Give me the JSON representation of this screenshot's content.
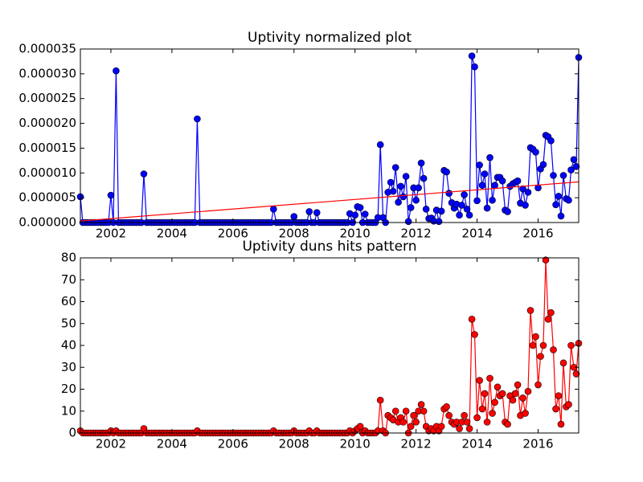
{
  "chart_data": [
    {
      "type": "line",
      "title": "Uptivity normalized plot",
      "xlim": [
        2001,
        2017.33
      ],
      "xticks": [
        2002,
        2004,
        2006,
        2008,
        2010,
        2012,
        2014,
        2016
      ],
      "ylim": [
        0,
        3.5e-05
      ],
      "yticks": [
        {
          "value": 0,
          "label": "0.000000"
        },
        5e-06,
        {
          "value": 1e-05,
          "label": "0.000010"
        },
        1.5e-05,
        {
          "value": 2e-05,
          "label": "0.000020"
        },
        2.5e-05,
        {
          "value": 3e-05,
          "label": "0.000030"
        },
        3.5e-05
      ],
      "series": [
        {
          "color": "#0000ff",
          "x": [
            2001,
            2001.08,
            2001.17,
            2001.25,
            2001.33,
            2001.42,
            2001.5,
            2001.58,
            2001.67,
            2001.75,
            2001.83,
            2001.92,
            2002,
            2002.08,
            2002.17,
            2002.25,
            2002.33,
            2002.42,
            2002.5,
            2002.58,
            2002.67,
            2002.75,
            2002.83,
            2002.92,
            2003,
            2003.08,
            2003.17,
            2003.25,
            2003.33,
            2003.42,
            2003.5,
            2003.58,
            2003.67,
            2003.75,
            2003.83,
            2003.92,
            2004,
            2004.08,
            2004.17,
            2004.25,
            2004.33,
            2004.42,
            2004.5,
            2004.58,
            2004.67,
            2004.75,
            2004.83,
            2004.92,
            2005,
            2005.08,
            2005.17,
            2005.25,
            2005.33,
            2005.42,
            2005.5,
            2005.58,
            2005.67,
            2005.75,
            2005.83,
            2005.92,
            2006,
            2006.08,
            2006.17,
            2006.25,
            2006.33,
            2006.42,
            2006.5,
            2006.58,
            2006.67,
            2006.75,
            2006.83,
            2006.92,
            2007,
            2007.08,
            2007.17,
            2007.25,
            2007.33,
            2007.42,
            2007.5,
            2007.58,
            2007.67,
            2007.75,
            2007.83,
            2007.92,
            2008,
            2008.08,
            2008.17,
            2008.25,
            2008.33,
            2008.42,
            2008.5,
            2008.58,
            2008.67,
            2008.75,
            2008.83,
            2008.92,
            2009,
            2009.08,
            2009.17,
            2009.25,
            2009.33,
            2009.42,
            2009.5,
            2009.58,
            2009.67,
            2009.75,
            2009.83,
            2009.92,
            2010,
            2010.08,
            2010.17,
            2010.25,
            2010.33,
            2010.42,
            2010.5,
            2010.58,
            2010.67,
            2010.75,
            2010.83,
            2010.92,
            2011,
            2011.08,
            2011.17,
            2011.25,
            2011.33,
            2011.42,
            2011.5,
            2011.58,
            2011.67,
            2011.75,
            2011.83,
            2011.92,
            2012,
            2012.08,
            2012.17,
            2012.25,
            2012.33,
            2012.42,
            2012.5,
            2012.58,
            2012.67,
            2012.75,
            2012.83,
            2012.92,
            2013,
            2013.08,
            2013.17,
            2013.25,
            2013.33,
            2013.42,
            2013.5,
            2013.58,
            2013.67,
            2013.75,
            2013.83,
            2013.92,
            2014,
            2014.08,
            2014.17,
            2014.25,
            2014.33,
            2014.42,
            2014.5,
            2014.58,
            2014.67,
            2014.75,
            2014.83,
            2014.92,
            2015,
            2015.08,
            2015.17,
            2015.25,
            2015.33,
            2015.42,
            2015.5,
            2015.58,
            2015.67,
            2015.75,
            2015.83,
            2015.92,
            2016,
            2016.08,
            2016.17,
            2016.25,
            2016.33,
            2016.42,
            2016.5,
            2016.58,
            2016.67,
            2016.75,
            2016.83,
            2016.92,
            2017,
            2017.08,
            2017.17,
            2017.25,
            2017.33
          ],
          "values": [
            5.2e-06,
            0,
            0,
            0,
            0,
            0,
            0,
            0,
            0,
            0,
            0,
            0,
            5.5e-06,
            0,
            3.06e-05,
            0,
            0,
            0,
            0,
            0,
            0,
            0,
            0,
            0,
            0,
            9.8e-06,
            0,
            0,
            0,
            0,
            0,
            0,
            0,
            0,
            0,
            0,
            0,
            0,
            0,
            0,
            0,
            0,
            0,
            0,
            0,
            0,
            2.09e-05,
            0,
            0,
            0,
            0,
            0,
            0,
            0,
            0,
            0,
            0,
            0,
            0,
            0,
            0,
            0,
            0,
            0,
            0,
            0,
            0,
            0,
            0,
            0,
            0,
            0,
            0,
            0,
            0,
            0,
            2.7e-06,
            0,
            0,
            0,
            0,
            0,
            0,
            0,
            1.2e-06,
            0,
            0,
            0,
            0,
            0,
            2.2e-06,
            0,
            0,
            2e-06,
            0,
            0,
            0,
            0,
            0,
            0,
            0,
            0,
            0,
            0,
            0,
            0,
            1.8e-06,
            0,
            1.5e-06,
            3.2e-06,
            3e-06,
            0,
            1.7e-06,
            0,
            0,
            0,
            0,
            1e-06,
            1.57e-05,
            1e-06,
            0,
            6.1e-06,
            8.1e-06,
            6.3e-06,
            1.11e-05,
            4.1e-06,
            7.3e-06,
            5.2e-06,
            9.3e-06,
            2e-07,
            3e-06,
            7e-06,
            4.5e-06,
            7e-06,
            1.2e-05,
            8.9e-06,
            2.7e-06,
            8e-07,
            9e-07,
            3e-07,
            2.5e-06,
            2e-07,
            2.3e-06,
            1.05e-05,
            1.02e-05,
            5.9e-06,
            4e-06,
            2.9e-06,
            3.7e-06,
            1.5e-06,
            3.5e-06,
            5.6e-06,
            2.7e-06,
            1.5e-06,
            3.36e-05,
            3.14e-05,
            4.4e-06,
            1.16e-05,
            7.5e-06,
            9.8e-06,
            2.9e-06,
            1.31e-05,
            4.5e-06,
            7.5e-06,
            9.1e-06,
            9.1e-06,
            8.4e-06,
            2.5e-06,
            2.2e-06,
            7.3e-06,
            7.8e-06,
            8.1e-06,
            8.4e-06,
            3.9e-06,
            6.8e-06,
            3.5e-06,
            6.1e-06,
            1.51e-05,
            1.48e-05,
            1.42e-05,
            7e-06,
            1.08e-05,
            1.17e-05,
            1.76e-05,
            1.73e-05,
            1.65e-05,
            9.5e-06,
            3.6e-06,
            5.3e-06,
            1.3e-06,
            9.5e-06,
            4.8e-06,
            4.5e-06,
            1.06e-05,
            1.27e-05,
            1.13e-05,
            3.33e-05
          ]
        }
      ],
      "trend": {
        "color": "#ff0000",
        "x": [
          2001,
          2017.33
        ],
        "values": [
          3e-07,
          8.2e-06
        ]
      }
    },
    {
      "type": "line",
      "title": "Uptivity duns hits pattern",
      "xlim": [
        2001,
        2017.33
      ],
      "xticks": [
        2002,
        2004,
        2006,
        2008,
        2010,
        2012,
        2014,
        2016
      ],
      "ylim": [
        0,
        80
      ],
      "yticks": [
        0,
        10,
        20,
        30,
        40,
        50,
        60,
        70,
        80
      ],
      "series": [
        {
          "color": "#ff0000",
          "x": [
            2001,
            2001.08,
            2001.17,
            2001.25,
            2001.33,
            2001.42,
            2001.5,
            2001.58,
            2001.67,
            2001.75,
            2001.83,
            2001.92,
            2002,
            2002.08,
            2002.17,
            2002.25,
            2002.33,
            2002.42,
            2002.5,
            2002.58,
            2002.67,
            2002.75,
            2002.83,
            2002.92,
            2003,
            2003.08,
            2003.17,
            2003.25,
            2003.33,
            2003.42,
            2003.5,
            2003.58,
            2003.67,
            2003.75,
            2003.83,
            2003.92,
            2004,
            2004.08,
            2004.17,
            2004.25,
            2004.33,
            2004.42,
            2004.5,
            2004.58,
            2004.67,
            2004.75,
            2004.83,
            2004.92,
            2005,
            2005.08,
            2005.17,
            2005.25,
            2005.33,
            2005.42,
            2005.5,
            2005.58,
            2005.67,
            2005.75,
            2005.83,
            2005.92,
            2006,
            2006.08,
            2006.17,
            2006.25,
            2006.33,
            2006.42,
            2006.5,
            2006.58,
            2006.67,
            2006.75,
            2006.83,
            2006.92,
            2007,
            2007.08,
            2007.17,
            2007.25,
            2007.33,
            2007.42,
            2007.5,
            2007.58,
            2007.67,
            2007.75,
            2007.83,
            2007.92,
            2008,
            2008.08,
            2008.17,
            2008.25,
            2008.33,
            2008.42,
            2008.5,
            2008.58,
            2008.67,
            2008.75,
            2008.83,
            2008.92,
            2009,
            2009.08,
            2009.17,
            2009.25,
            2009.33,
            2009.42,
            2009.5,
            2009.58,
            2009.67,
            2009.75,
            2009.83,
            2009.92,
            2010,
            2010.08,
            2010.17,
            2010.25,
            2010.33,
            2010.42,
            2010.5,
            2010.58,
            2010.67,
            2010.75,
            2010.83,
            2010.92,
            2011,
            2011.08,
            2011.17,
            2011.25,
            2011.33,
            2011.42,
            2011.5,
            2011.58,
            2011.67,
            2011.75,
            2011.83,
            2011.92,
            2012,
            2012.08,
            2012.17,
            2012.25,
            2012.33,
            2012.42,
            2012.5,
            2012.58,
            2012.67,
            2012.75,
            2012.83,
            2012.92,
            2013,
            2013.08,
            2013.17,
            2013.25,
            2013.33,
            2013.42,
            2013.5,
            2013.58,
            2013.67,
            2013.75,
            2013.83,
            2013.92,
            2014,
            2014.08,
            2014.17,
            2014.25,
            2014.33,
            2014.42,
            2014.5,
            2014.58,
            2014.67,
            2014.75,
            2014.83,
            2014.92,
            2015,
            2015.08,
            2015.17,
            2015.25,
            2015.33,
            2015.42,
            2015.5,
            2015.58,
            2015.67,
            2015.75,
            2015.83,
            2015.92,
            2016,
            2016.08,
            2016.17,
            2016.25,
            2016.33,
            2016.42,
            2016.5,
            2016.58,
            2016.67,
            2016.75,
            2016.83,
            2016.92,
            2017,
            2017.08,
            2017.17,
            2017.25,
            2017.33
          ],
          "values": [
            1,
            0,
            0,
            0,
            0,
            0,
            0,
            0,
            0,
            0,
            0,
            0,
            1,
            0,
            1,
            0,
            0,
            0,
            0,
            0,
            0,
            0,
            0,
            0,
            0,
            2,
            0,
            0,
            0,
            0,
            0,
            0,
            0,
            0,
            0,
            0,
            0,
            0,
            0,
            0,
            0,
            0,
            0,
            0,
            0,
            0,
            1,
            0,
            0,
            0,
            0,
            0,
            0,
            0,
            0,
            0,
            0,
            0,
            0,
            0,
            0,
            0,
            0,
            0,
            0,
            0,
            0,
            0,
            0,
            0,
            0,
            0,
            0,
            0,
            0,
            0,
            1,
            0,
            0,
            0,
            0,
            0,
            0,
            0,
            1,
            0,
            0,
            0,
            0,
            0,
            1,
            0,
            0,
            1,
            0,
            0,
            0,
            0,
            0,
            0,
            0,
            0,
            0,
            0,
            0,
            0,
            1,
            0,
            1,
            2,
            3,
            0,
            1,
            0,
            0,
            0,
            0,
            1,
            15,
            1,
            0,
            8,
            7,
            6,
            10,
            5,
            7,
            5,
            10,
            0,
            3,
            8,
            5,
            10,
            13,
            10,
            3,
            1,
            2,
            1,
            3,
            1,
            3,
            11,
            12,
            8,
            5,
            4,
            5,
            2,
            5,
            8,
            5,
            2,
            52,
            45,
            7,
            24,
            11,
            18,
            5,
            25,
            9,
            14,
            21,
            17,
            18,
            5,
            4,
            17,
            15,
            18,
            22,
            8,
            16,
            9,
            19,
            56,
            40,
            44,
            22,
            35,
            40,
            79,
            52,
            55,
            38,
            11,
            17,
            4,
            32,
            12,
            13,
            40,
            30,
            27,
            41
          ]
        }
      ]
    }
  ]
}
